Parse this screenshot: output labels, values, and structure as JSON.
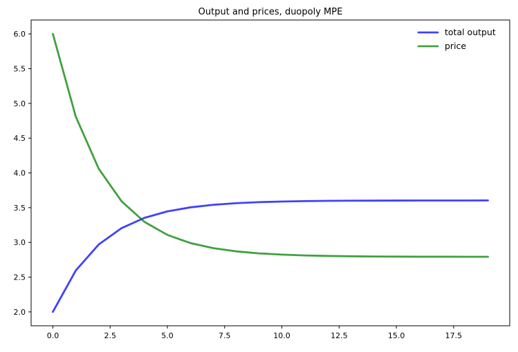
{
  "chart_data": {
    "type": "line",
    "title": "Output and prices, duopoly MPE",
    "xlabel": "",
    "ylabel": "",
    "grid": false,
    "xlim": [
      -0.95,
      19.95
    ],
    "ylim": [
      1.8,
      6.2
    ],
    "x": [
      0,
      1,
      2,
      3,
      4,
      5,
      6,
      7,
      8,
      9,
      10,
      11,
      12,
      13,
      14,
      15,
      16,
      17,
      18,
      19
    ],
    "series": [
      {
        "name": "total output",
        "color": "#0000ff",
        "opacity": 0.75,
        "values": [
          2.0,
          2.595,
          2.969,
          3.205,
          3.353,
          3.446,
          3.504,
          3.541,
          3.564,
          3.579,
          3.588,
          3.594,
          3.598,
          3.6,
          3.601,
          3.602,
          3.603,
          3.603,
          3.603,
          3.604
        ]
      },
      {
        "name": "price",
        "color": "#008000",
        "opacity": 0.75,
        "values": [
          6.0,
          4.81,
          4.061,
          3.591,
          3.295,
          3.108,
          2.991,
          2.917,
          2.871,
          2.842,
          2.824,
          2.812,
          2.805,
          2.8,
          2.797,
          2.795,
          2.794,
          2.794,
          2.793,
          2.793
        ]
      }
    ],
    "x_ticks": {
      "values": [
        0,
        2.5,
        5,
        7.5,
        10,
        12.5,
        15,
        17.5
      ],
      "labels": [
        "0.0",
        "2.5",
        "5.0",
        "7.5",
        "10.0",
        "12.5",
        "15.0",
        "17.5"
      ]
    },
    "y_ticks": {
      "values": [
        2.0,
        2.5,
        3.0,
        3.5,
        4.0,
        4.5,
        5.0,
        5.5,
        6.0
      ],
      "labels": [
        "2.0",
        "2.5",
        "3.0",
        "3.5",
        "4.0",
        "4.5",
        "5.0",
        "5.5",
        "6.0"
      ]
    },
    "legend": {
      "position": "upper right",
      "entries": [
        "total output",
        "price"
      ]
    }
  }
}
